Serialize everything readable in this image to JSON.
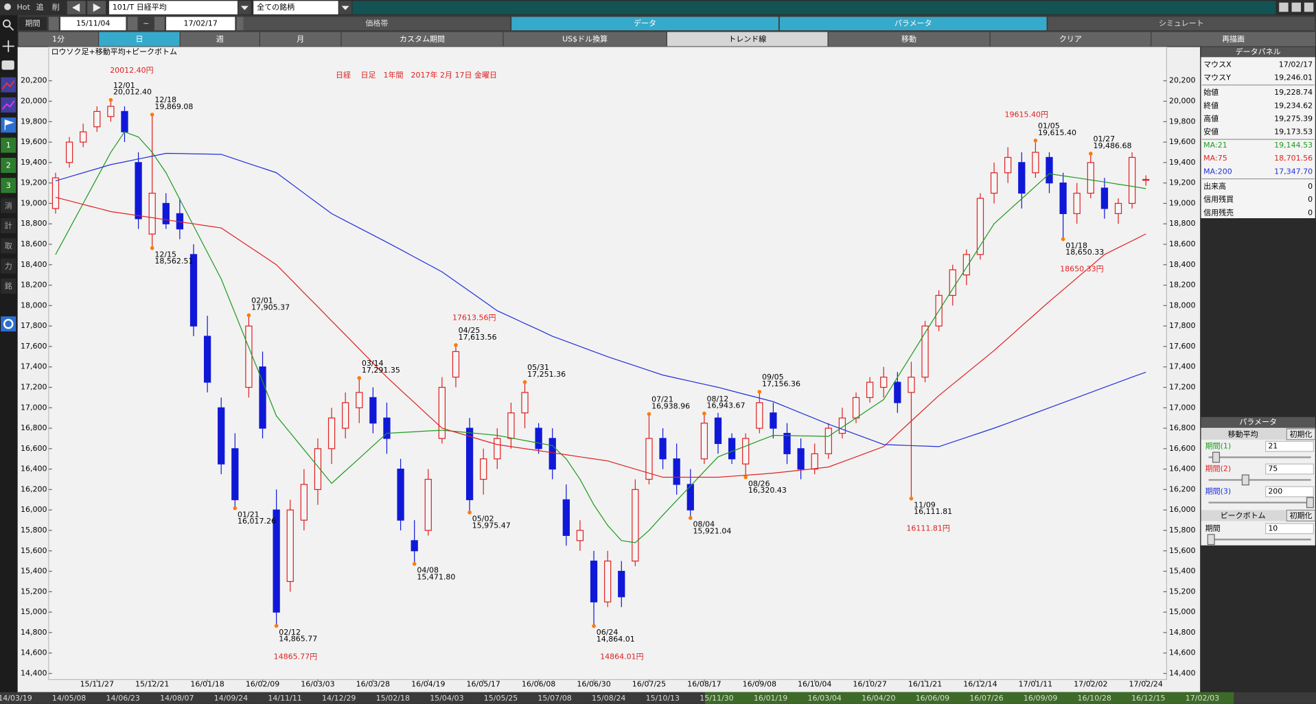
{
  "toolbar": {
    "hot": "Hot",
    "add": "追",
    "del": "削",
    "symbol": "101/T 日経平均",
    "universe": "全ての銘柄",
    "period_label": "期間",
    "from": "15/11/04",
    "tilde": "~",
    "to": "17/02/17"
  },
  "tabs": [
    {
      "label": "価格帯"
    },
    {
      "label": "データ",
      "active": true
    },
    {
      "label": "パラメータ",
      "active": true
    },
    {
      "label": "シミュレート"
    }
  ],
  "buttons": [
    {
      "label": "1分"
    },
    {
      "label": "日",
      "active": true
    },
    {
      "label": "週"
    },
    {
      "label": "月"
    },
    {
      "label": "カスタム期間"
    },
    {
      "label": "US$ドル換算"
    },
    {
      "label": "トレンド線",
      "light": true
    },
    {
      "label": "移動"
    },
    {
      "label": "クリア"
    },
    {
      "label": "再描画"
    }
  ],
  "sidebar": [
    "1",
    "2",
    "3",
    "消",
    "計",
    "取",
    "力",
    "銘"
  ],
  "chart_data": {
    "type": "candlestick",
    "subtitle": "ロウソク足+移動平均+ピークボトム",
    "title": "日経　 日足　1年間　2017年 2月 17日 金曜日",
    "up_color": "#e02020",
    "down_color": "#1018d8",
    "categories": [
      null,
      null,
      null,
      "15/11/27",
      null,
      null,
      null,
      "15/12/21",
      null,
      null,
      null,
      "16/01/18",
      null,
      null,
      null,
      "16/02/09",
      null,
      null,
      null,
      "16/03/03",
      null,
      null,
      null,
      "16/03/28",
      null,
      null,
      null,
      "16/04/19",
      null,
      null,
      null,
      "16/05/17",
      null,
      null,
      null,
      "16/06/08",
      null,
      null,
      null,
      "16/06/30",
      null,
      null,
      null,
      "16/07/25",
      null,
      null,
      null,
      "16/08/17",
      null,
      null,
      null,
      "16/09/08",
      null,
      null,
      null,
      "16/10/04",
      null,
      null,
      null,
      "16/10/27",
      null,
      null,
      null,
      "16/11/21",
      null,
      null,
      null,
      "16/12/14",
      null,
      null,
      null,
      "17/01/11",
      null,
      null,
      null,
      "17/02/02",
      null,
      null,
      null,
      "17/02/24"
    ],
    "candles": {
      "open": [
        18950,
        19400,
        19600,
        19750,
        19850,
        19900,
        19400,
        18700,
        19000,
        18900,
        18500,
        17700,
        17000,
        16600,
        17200,
        17400,
        16000,
        15300,
        15900,
        16200,
        16600,
        16800,
        17000,
        17100,
        16900,
        16400,
        15700,
        15800,
        16700,
        17300,
        16800,
        16300,
        16500,
        16700,
        16950,
        16800,
        16700,
        16100,
        15700,
        15500,
        15100,
        15400,
        15500,
        16300,
        16700,
        16500,
        16250,
        16500,
        16900,
        16700,
        16450,
        16800,
        16950,
        16750,
        16600,
        16400,
        16550,
        16750,
        16900,
        17100,
        17200,
        17250,
        17150,
        17300,
        17800,
        18100,
        18300,
        18500,
        19100,
        19300,
        19400,
        19300,
        19450,
        19200,
        18900,
        19100,
        19150,
        18900,
        19000,
        19228.74
      ],
      "high": [
        19300,
        19650,
        19780,
        19950,
        20012.4,
        19950,
        19500,
        19869.08,
        19100,
        19050,
        18600,
        17900,
        17100,
        16750,
        17905.37,
        17550,
        16200,
        16100,
        16400,
        16700,
        17000,
        17150,
        17291.35,
        17200,
        17050,
        16500,
        15900,
        16400,
        17300,
        17613.56,
        16900,
        16600,
        16800,
        17050,
        17251.36,
        16850,
        16800,
        16250,
        15900,
        15600,
        15600,
        15500,
        16300,
        16938.96,
        16800,
        16650,
        16400,
        16943.67,
        16950,
        16750,
        16750,
        17156.36,
        17050,
        16850,
        16700,
        16650,
        16850,
        17000,
        17150,
        17300,
        17400,
        17350,
        17450,
        17850,
        18150,
        18400,
        18550,
        19100,
        19400,
        19550,
        19500,
        19615.4,
        19500,
        19300,
        19200,
        19486.68,
        19250,
        19050,
        19500,
        19275.39
      ],
      "low": [
        18900,
        19350,
        19550,
        19700,
        19800,
        19600,
        18750,
        18562.51,
        18750,
        18650,
        17700,
        17150,
        16350,
        16017.26,
        17100,
        16700,
        14865.77,
        15200,
        15800,
        16050,
        16450,
        16700,
        16850,
        16750,
        16550,
        15800,
        15471.8,
        15750,
        16650,
        17200,
        15975.47,
        16150,
        16400,
        16600,
        16800,
        16550,
        16300,
        15650,
        15600,
        14864.01,
        15050,
        15050,
        15450,
        16250,
        16400,
        16150,
        15921.04,
        16450,
        16550,
        16450,
        16320.43,
        16750,
        16700,
        16450,
        16300,
        16350,
        16500,
        16700,
        16850,
        17050,
        17100,
        16950,
        16111.81,
        17250,
        17750,
        18000,
        18200,
        18450,
        19000,
        19200,
        18950,
        19250,
        19100,
        18650.33,
        18800,
        19050,
        18850,
        18800,
        18950,
        19173.53
      ],
      "close": [
        19250,
        19600,
        19700,
        19900,
        19950,
        19700,
        18850,
        19100,
        18800,
        18750,
        17800,
        17250,
        16450,
        16100,
        17800,
        16800,
        15000,
        16000,
        16250,
        16600,
        16900,
        17050,
        17150,
        16850,
        16700,
        15900,
        15600,
        16300,
        17200,
        17550,
        16100,
        16500,
        16700,
        16950,
        17150,
        16600,
        16400,
        15750,
        15800,
        15100,
        15500,
        15150,
        16200,
        16700,
        16500,
        16250,
        16000,
        16850,
        16650,
        16500,
        16700,
        17050,
        16800,
        16550,
        16400,
        16550,
        16800,
        16900,
        17100,
        17250,
        17300,
        17050,
        17300,
        17800,
        18100,
        18350,
        18500,
        19050,
        19300,
        19450,
        19100,
        19500,
        19200,
        18900,
        19100,
        19400,
        18950,
        19000,
        19450,
        19234.62
      ]
    },
    "moving_averages": [
      {
        "color": "#1f9a1f",
        "values": [
          18500,
          18750,
          19000,
          19250,
          19500,
          19700,
          19650,
          19500,
          19300,
          19040,
          18780,
          18520,
          18260,
          17925,
          17590,
          17255,
          16920,
          16755,
          16590,
          16425,
          16260,
          16383,
          16505,
          16628,
          16750,
          16758,
          16765,
          16773,
          16780,
          16768,
          16755,
          16743,
          16730,
          16705,
          16680,
          16655,
          16630,
          16500,
          16300,
          16050,
          15850,
          15700,
          15680,
          15800,
          15950,
          16093,
          16235,
          16378,
          16520,
          16573,
          16625,
          16678,
          16730,
          16728,
          16725,
          16723,
          16720,
          16810,
          16900,
          16990,
          17080,
          17298,
          17515,
          17733,
          17950,
          18163,
          18375,
          18588,
          18800,
          18923,
          19045,
          19168,
          19290,
          19270,
          19250,
          19230,
          19210,
          19188,
          19167,
          19145
        ]
      },
      {
        "color": "#e02020",
        "values": [
          19060,
          19025,
          18990,
          18955,
          18920,
          18900,
          18880,
          18860,
          18840,
          18820,
          18800,
          18780,
          18760,
          18670,
          18580,
          18490,
          18400,
          18263,
          18125,
          17988,
          17850,
          17713,
          17575,
          17438,
          17300,
          17175,
          17050,
          16925,
          16800,
          16760,
          16720,
          16680,
          16640,
          16620,
          16600,
          16580,
          16560,
          16540,
          16520,
          16500,
          16480,
          16440,
          16400,
          16360,
          16320,
          16320,
          16320,
          16320,
          16320,
          16330,
          16340,
          16350,
          16360,
          16375,
          16390,
          16405,
          16420,
          16470,
          16520,
          16570,
          16620,
          16745,
          16870,
          16995,
          17120,
          17230,
          17340,
          17450,
          17560,
          17680,
          17800,
          17920,
          18040,
          18155,
          18270,
          18385,
          18500,
          18567,
          18634,
          18702
        ]
      },
      {
        "color": "#2030d8",
        "values": [
          19220,
          19260,
          19300,
          19340,
          19380,
          19407,
          19435,
          19462,
          19490,
          19488,
          19485,
          19483,
          19480,
          19435,
          19390,
          19345,
          19300,
          19200,
          19100,
          19000,
          18900,
          18830,
          18760,
          18690,
          18620,
          18548,
          18475,
          18403,
          18330,
          18235,
          18140,
          18045,
          17950,
          17888,
          17825,
          17763,
          17700,
          17650,
          17600,
          17550,
          17500,
          17455,
          17410,
          17365,
          17320,
          17290,
          17260,
          17230,
          17200,
          17165,
          17130,
          17095,
          17060,
          17005,
          16950,
          16895,
          16840,
          16790,
          16740,
          16690,
          16640,
          16635,
          16630,
          16625,
          16620,
          16665,
          16710,
          16755,
          16800,
          16850,
          16900,
          16950,
          17000,
          17050,
          17100,
          17150,
          17200,
          17250,
          17300,
          17348
        ]
      }
    ],
    "peaks": [
      {
        "date": "12/01",
        "label": "20,012.40",
        "value": 20012.4
      },
      {
        "date": "12/18",
        "label": "19,869.08",
        "value": 19869.08
      },
      {
        "date": "02/01",
        "label": "17,905.37",
        "value": 17905.37
      },
      {
        "date": "03/14",
        "label": "17,291.35",
        "value": 17291.35
      },
      {
        "date": "04/25",
        "label": "17,613.56",
        "value": 17613.56
      },
      {
        "date": "05/31",
        "label": "17,251.36",
        "value": 17251.36
      },
      {
        "date": "07/21",
        "label": "16,938.96",
        "value": 16938.96
      },
      {
        "date": "08/12",
        "label": "16,943.67",
        "value": 16943.67
      },
      {
        "date": "09/05",
        "label": "17,156.36",
        "value": 17156.36
      },
      {
        "date": "01/05",
        "label": "19,615.40",
        "value": 19615.4
      },
      {
        "date": "01/27",
        "label": "19,486.68",
        "value": 19486.68
      }
    ],
    "bottoms": [
      {
        "date": "12/15",
        "label": "18,562.51",
        "value": 18562.51
      },
      {
        "date": "01/21",
        "label": "16,017.26",
        "value": 16017.26
      },
      {
        "date": "02/12",
        "label": "14,865.77",
        "value": 14865.77
      },
      {
        "date": "04/08",
        "label": "15,471.80",
        "value": 15471.8
      },
      {
        "date": "05/02",
        "label": "15,975.47",
        "value": 15975.47
      },
      {
        "date": "06/24",
        "label": "14,864.01",
        "value": 14864.01
      },
      {
        "date": "08/04",
        "label": "15,921.04",
        "value": 15921.04
      },
      {
        "date": "08/26",
        "label": "16,320.43",
        "value": 16320.43
      },
      {
        "date": "11/09",
        "label": "16,111.81",
        "value": 16111.81
      },
      {
        "date": "01/18",
        "label": "18,650.33",
        "value": 18650.33
      }
    ],
    "big_labels": [
      "20012.40円",
      "17613.56円",
      "19615.40円",
      "14865.77円",
      "14864.01円",
      "16111.81円",
      "18650.33円"
    ],
    "ylim": [
      14340,
      20530
    ],
    "yticks": [
      {
        "value": 14400,
        "label": "14,400"
      },
      {
        "value": 14600,
        "label": "14,600"
      },
      {
        "value": 14800,
        "label": "14,800"
      },
      {
        "value": 15000,
        "label": "15,000"
      },
      {
        "value": 15200,
        "label": "15,200"
      },
      {
        "value": 15400,
        "label": "15,400"
      },
      {
        "value": 15600,
        "label": "15,600"
      },
      {
        "value": 15800,
        "label": "15,800"
      },
      {
        "value": 16000,
        "label": "16,000"
      },
      {
        "value": 16200,
        "label": "16,200"
      },
      {
        "value": 16400,
        "label": "16,400"
      },
      {
        "value": 16600,
        "label": "16,600"
      },
      {
        "value": 16800,
        "label": "16,800"
      },
      {
        "value": 17000,
        "label": "17,000"
      },
      {
        "value": 17200,
        "label": "17,200"
      },
      {
        "value": 17400,
        "label": "17,400"
      },
      {
        "value": 17600,
        "label": "17,600"
      },
      {
        "value": 17800,
        "label": "17,800"
      },
      {
        "value": 18000,
        "label": "18,000"
      },
      {
        "value": 18200,
        "label": "18,200"
      },
      {
        "value": 18400,
        "label": "18,400"
      },
      {
        "value": 18600,
        "label": "18,600"
      },
      {
        "value": 18800,
        "label": "18,800"
      },
      {
        "value": 19000,
        "label": "19,000"
      },
      {
        "value": 19200,
        "label": "19,200"
      },
      {
        "value": 19400,
        "label": "19,400"
      },
      {
        "value": 19600,
        "label": "19,600"
      },
      {
        "value": 19800,
        "label": "19,800"
      },
      {
        "value": 20000,
        "label": "20,000"
      },
      {
        "value": 20200,
        "label": "20,200"
      }
    ]
  },
  "data_panel": {
    "title": "データパネル",
    "rows": [
      {
        "key": "マウスX",
        "value": "17/02/17"
      },
      {
        "key": "マウスY",
        "value": "19,246.01"
      },
      {
        "key": "始値",
        "value": "19,228.74"
      },
      {
        "key": "終値",
        "value": "19,234.62"
      },
      {
        "key": "高値",
        "value": "19,275.39"
      },
      {
        "key": "安値",
        "value": "19,173.53"
      },
      {
        "key": "MA:21",
        "value": "19,144.53",
        "color": "#1f9a1f"
      },
      {
        "key": "MA:75",
        "value": "18,701.56",
        "color": "#e02020"
      },
      {
        "key": "MA:200",
        "value": "17,347.70",
        "color": "#2030d8"
      },
      {
        "key": "出来高",
        "value": "0"
      },
      {
        "key": "信用残買",
        "value": "0"
      },
      {
        "key": "信用残売",
        "value": "0"
      }
    ]
  },
  "param_panel": {
    "title": "パラメータ",
    "ma_header": "移動平均",
    "reset": "初期化",
    "periods": [
      {
        "label": "期間(1)",
        "value": 21,
        "color": "#1f9a1f"
      },
      {
        "label": "期間(2)",
        "value": 75,
        "color": "#e02020"
      },
      {
        "label": "期間(3)",
        "value": 200,
        "color": "#2030d8"
      }
    ],
    "peak_header": "ピークボトム",
    "peak_reset": "初期化",
    "peak_period": {
      "label": "期間",
      "value": 10
    }
  },
  "timeline": [
    "14/03/19",
    "14/05/08",
    "14/06/23",
    "14/08/07",
    "14/09/24",
    "14/11/11",
    "14/12/29",
    "15/02/18",
    "15/04/03",
    "15/05/25",
    "15/07/08",
    "15/08/24",
    "15/10/13",
    "15/11/30",
    "16/01/19",
    "16/03/04",
    "16/04/20",
    "16/06/09",
    "16/07/26",
    "16/09/09",
    "16/10/28",
    "16/12/15",
    "17/02/03"
  ]
}
